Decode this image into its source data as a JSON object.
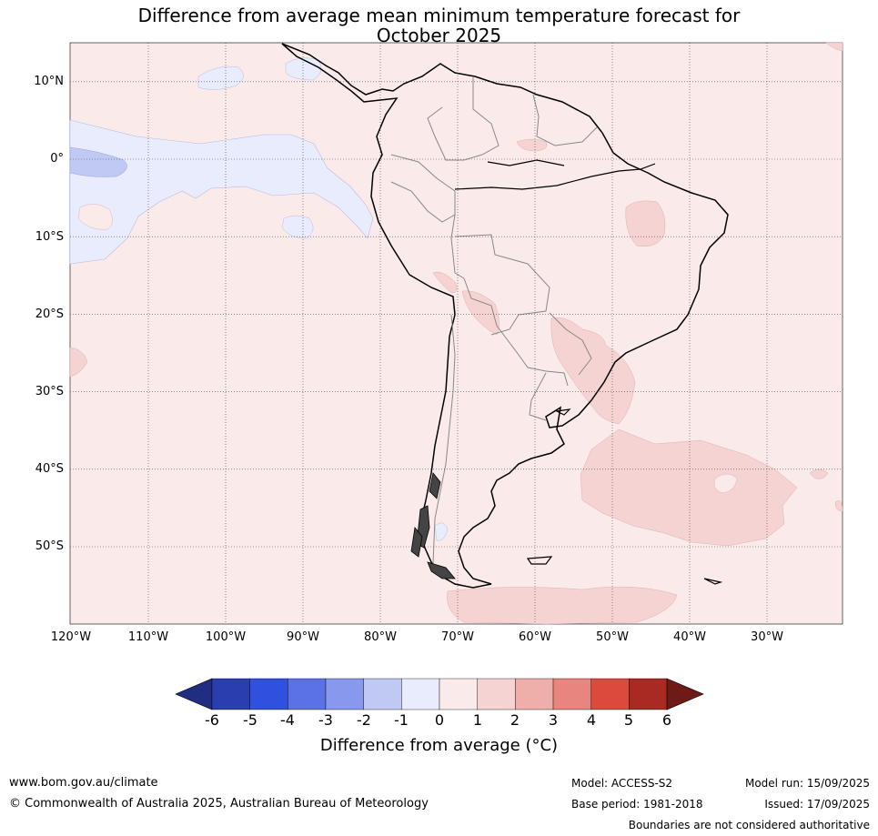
{
  "title": {
    "line1": "Difference from average mean minimum temperature forecast for",
    "line2": "October 2025"
  },
  "map": {
    "lat_labels": [
      "10°N",
      "0°",
      "10°S",
      "20°S",
      "30°S",
      "40°S",
      "50°S"
    ],
    "lon_labels": [
      "120°W",
      "110°W",
      "100°W",
      "90°W",
      "80°W",
      "70°W",
      "60°W",
      "50°W",
      "40°W",
      "30°W"
    ],
    "extent": {
      "lon_min": -120,
      "lon_max": -20,
      "lat_min": -60,
      "lat_max": 15
    },
    "background_color": "#fbeaea"
  },
  "colorbar": {
    "ticks": [
      "-6",
      "-5",
      "-4",
      "-3",
      "-2",
      "-1",
      "0",
      "1",
      "2",
      "3",
      "4",
      "5",
      "6"
    ],
    "label": "Difference from average (°C)",
    "colors": [
      "#1f2e80",
      "#2a3eb0",
      "#3050e0",
      "#5a72e6",
      "#8898ec",
      "#c0c8f4",
      "#e8ecfc",
      "#fbeaea",
      "#f5d3d3",
      "#eeaeaa",
      "#e8857e",
      "#dc4a3e",
      "#a82a22",
      "#6e1a18"
    ]
  },
  "footer": {
    "website": "www.bom.gov.au/climate",
    "copyright": "© Commonwealth of Australia 2025, Australian Bureau of Meteorology",
    "model": "Model: ACCESS-S2",
    "base_period": "Base period: 1981-2018",
    "model_run": "Model run: 15/09/2025",
    "issued": "Issued: 17/09/2025",
    "disclaimer": "Boundaries are not considered authoritative"
  }
}
